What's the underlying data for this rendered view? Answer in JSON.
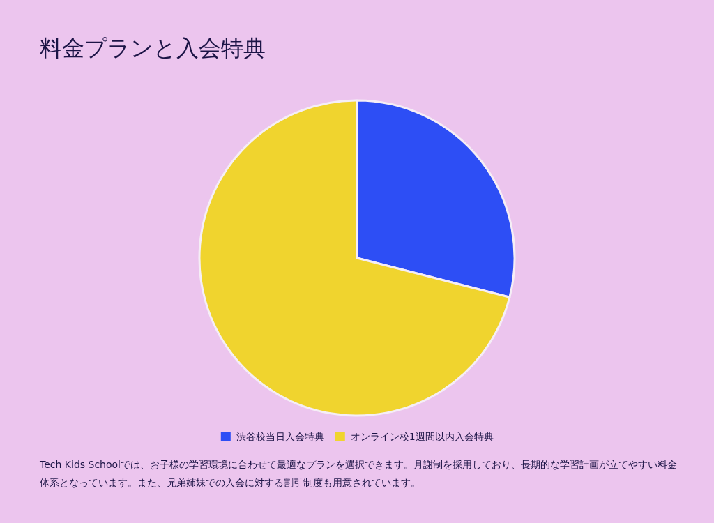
{
  "chart_data": {
    "type": "pie",
    "title": "料金プランと入会特典",
    "categories": [
      "渋谷校当日入会特典",
      "オンライン校1週間以内入会特典"
    ],
    "values": [
      29,
      71
    ],
    "colors": [
      "#2d4ef5",
      "#f0d42e"
    ],
    "legend": "bottom",
    "annotations": [
      "Tech Kids Schoolでは、お子様の学習環境に合わせて最適なプランを選択できます。月謝制を採用しており、長期的な学習計画が立てやすい料金体系となっています。また、兄弟姉妹での入会に対する割引制度も用意されています。"
    ]
  }
}
